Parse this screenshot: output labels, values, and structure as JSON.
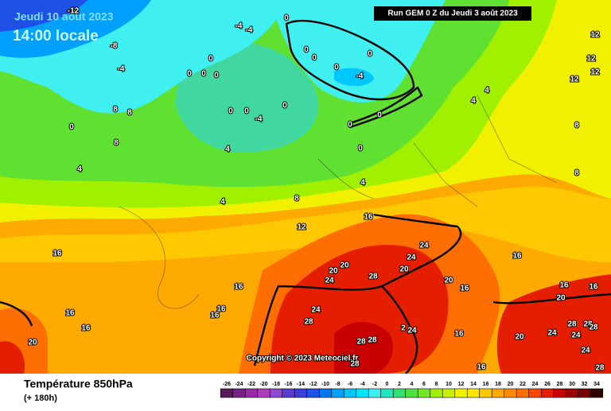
{
  "header": {
    "date": "Jeudi 10 août 2023",
    "time": "14:00 locale",
    "run": "Run GEM 0 Z du Jeudi 3 août 2023",
    "copyright": "Copyright © 2023 Meteociel.fr"
  },
  "footer": {
    "title": "Température 850hPa",
    "lead": "(+ 180h)"
  },
  "colorbar": {
    "ticks": [
      -26,
      -24,
      -22,
      -20,
      -18,
      -16,
      -14,
      -12,
      -10,
      -8,
      -6,
      -4,
      -2,
      0,
      2,
      4,
      6,
      8,
      10,
      12,
      14,
      16,
      18,
      20,
      22,
      24,
      26,
      28,
      30,
      32,
      34
    ],
    "colors": [
      "#5a1a5a",
      "#7a1f8a",
      "#9a2aa8",
      "#b03cc0",
      "#8c4ad0",
      "#5a3cd0",
      "#3c3cd8",
      "#1e50e6",
      "#0078f0",
      "#00a0ff",
      "#00c8ff",
      "#00e6ff",
      "#40f0f0",
      "#20e6c0",
      "#30e070",
      "#50e040",
      "#78e628",
      "#a0f000",
      "#c8f000",
      "#f0f000",
      "#ffe600",
      "#ffc800",
      "#ffaa00",
      "#ff8c00",
      "#ff6e00",
      "#ff4600",
      "#e61e00",
      "#c80000",
      "#a00000",
      "#780000",
      "#300000"
    ]
  },
  "contour_labels": [
    -12,
    -4,
    -4,
    0,
    -8,
    -4,
    0,
    0,
    0,
    0,
    -4,
    0,
    0,
    0,
    0,
    8,
    8,
    0,
    8,
    0,
    0,
    -4,
    0,
    0,
    0,
    0,
    4,
    4,
    4,
    8,
    4,
    12,
    16,
    16,
    16,
    16,
    16,
    16,
    16,
    20,
    24,
    24,
    20,
    20,
    24,
    28,
    20,
    20,
    16,
    24,
    28,
    2,
    24,
    16,
    28,
    28,
    28,
    16,
    16,
    16,
    16,
    20,
    20,
    24,
    28,
    28,
    28,
    24,
    24,
    28,
    12,
    12,
    12,
    12,
    8,
    8,
    4,
    4
  ]
}
